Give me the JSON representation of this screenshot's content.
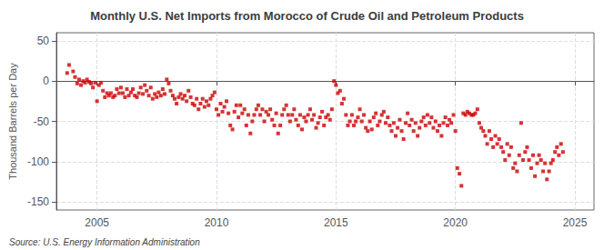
{
  "chart_data": {
    "type": "scatter",
    "title": "Monthly U.S. Net Imports from Morocco of Crude Oil and Petroleum Products",
    "ylabel": "Thousand Barrels per Day",
    "annotations": [
      "Source: U.S. Energy Information Administration"
    ],
    "color": "#cc0000",
    "marker": "square",
    "grid": true,
    "xlim": [
      2003.3,
      2025.8
    ],
    "ylim": [
      -160,
      60
    ],
    "xticks": [
      2005,
      2010,
      2015,
      2020,
      2025
    ],
    "yticks": [
      -150,
      -100,
      -50,
      0,
      50
    ],
    "x": [
      2003.75,
      2003.83,
      2004.0,
      2004.08,
      2004.17,
      2004.25,
      2004.33,
      2004.42,
      2004.5,
      2004.58,
      2004.67,
      2004.75,
      2004.83,
      2004.92,
      2005.0,
      2005.08,
      2005.17,
      2005.25,
      2005.33,
      2005.42,
      2005.5,
      2005.58,
      2005.67,
      2005.75,
      2005.83,
      2005.92,
      2006.0,
      2006.08,
      2006.17,
      2006.25,
      2006.33,
      2006.42,
      2006.5,
      2006.58,
      2006.67,
      2006.75,
      2006.83,
      2006.92,
      2007.0,
      2007.08,
      2007.17,
      2007.25,
      2007.33,
      2007.42,
      2007.5,
      2007.58,
      2007.67,
      2007.75,
      2007.83,
      2007.92,
      2008.0,
      2008.08,
      2008.17,
      2008.25,
      2008.33,
      2008.42,
      2008.5,
      2008.58,
      2008.67,
      2008.75,
      2008.83,
      2008.92,
      2009.0,
      2009.08,
      2009.17,
      2009.25,
      2009.33,
      2009.42,
      2009.5,
      2009.58,
      2009.67,
      2009.75,
      2009.83,
      2009.92,
      2010.0,
      2010.08,
      2010.17,
      2010.25,
      2010.33,
      2010.42,
      2010.5,
      2010.58,
      2010.67,
      2010.75,
      2010.83,
      2010.92,
      2011.0,
      2011.08,
      2011.17,
      2011.25,
      2011.33,
      2011.42,
      2011.5,
      2011.58,
      2011.67,
      2011.75,
      2011.83,
      2011.92,
      2012.0,
      2012.08,
      2012.17,
      2012.25,
      2012.33,
      2012.42,
      2012.5,
      2012.58,
      2012.67,
      2012.75,
      2012.83,
      2012.92,
      2013.0,
      2013.08,
      2013.17,
      2013.25,
      2013.33,
      2013.42,
      2013.5,
      2013.58,
      2013.67,
      2013.75,
      2013.83,
      2013.92,
      2014.0,
      2014.08,
      2014.17,
      2014.25,
      2014.33,
      2014.42,
      2014.5,
      2014.58,
      2014.67,
      2014.75,
      2014.83,
      2014.92,
      2015.0,
      2015.08,
      2015.17,
      2015.25,
      2015.33,
      2015.42,
      2015.5,
      2015.58,
      2015.67,
      2015.75,
      2015.83,
      2015.92,
      2016.0,
      2016.08,
      2016.17,
      2016.25,
      2016.33,
      2016.42,
      2016.5,
      2016.58,
      2016.67,
      2016.75,
      2016.83,
      2016.92,
      2017.0,
      2017.08,
      2017.17,
      2017.25,
      2017.33,
      2017.42,
      2017.5,
      2017.58,
      2017.67,
      2017.75,
      2017.83,
      2017.92,
      2018.0,
      2018.08,
      2018.17,
      2018.25,
      2018.33,
      2018.42,
      2018.5,
      2018.58,
      2018.67,
      2018.75,
      2018.83,
      2018.92,
      2019.0,
      2019.08,
      2019.17,
      2019.25,
      2019.33,
      2019.42,
      2019.5,
      2019.58,
      2019.67,
      2019.75,
      2019.83,
      2019.92,
      2020.0,
      2020.08,
      2020.17,
      2020.25,
      2020.33,
      2020.42,
      2020.5,
      2020.58,
      2020.67,
      2020.75,
      2020.83,
      2020.92,
      2021.0,
      2021.08,
      2021.17,
      2021.25,
      2021.33,
      2021.42,
      2021.5,
      2021.58,
      2021.67,
      2021.75,
      2021.83,
      2021.92,
      2022.0,
      2022.08,
      2022.17,
      2022.25,
      2022.33,
      2022.42,
      2022.5,
      2022.58,
      2022.67,
      2022.75,
      2022.83,
      2022.92,
      2023.0,
      2023.08,
      2023.17,
      2023.25,
      2023.33,
      2023.42,
      2023.5,
      2023.58,
      2023.67,
      2023.75,
      2023.83,
      2023.92,
      2024.0,
      2024.08,
      2024.17,
      2024.25,
      2024.33,
      2024.42,
      2024.5
    ],
    "values": [
      10,
      20,
      12,
      5,
      -3,
      2,
      -5,
      0,
      -2,
      2,
      -1,
      -3,
      -8,
      -2,
      -25,
      -5,
      -2,
      -12,
      -20,
      -15,
      -18,
      -15,
      -20,
      -18,
      -10,
      -15,
      -8,
      -15,
      -20,
      -10,
      -18,
      -14,
      -10,
      -18,
      -20,
      -15,
      -8,
      -16,
      -5,
      -12,
      -18,
      -8,
      -22,
      -16,
      -20,
      -14,
      -18,
      -10,
      -16,
      2,
      -3,
      -12,
      -18,
      -22,
      -28,
      -20,
      -16,
      -22,
      -18,
      -25,
      -12,
      -20,
      -28,
      -30,
      -22,
      -35,
      -28,
      -22,
      -32,
      -25,
      -30,
      -22,
      -18,
      -14,
      -35,
      -42,
      -28,
      -38,
      -32,
      -25,
      -40,
      -55,
      -60,
      -38,
      -30,
      -45,
      -30,
      -40,
      -35,
      -55,
      -42,
      -65,
      -50,
      -42,
      -35,
      -30,
      -42,
      -35,
      -50,
      -38,
      -42,
      -35,
      -48,
      -55,
      -40,
      -65,
      -55,
      -42,
      -35,
      -30,
      -42,
      -50,
      -42,
      -35,
      -48,
      -55,
      -42,
      -60,
      -45,
      -50,
      -42,
      -35,
      -48,
      -42,
      -58,
      -52,
      -45,
      -38,
      -55,
      -45,
      -42,
      -48,
      -35,
      0,
      -5,
      -15,
      -12,
      -28,
      -22,
      -42,
      -55,
      -50,
      -42,
      -55,
      -50,
      -45,
      -35,
      -50,
      -42,
      -58,
      -62,
      -50,
      -60,
      -45,
      -40,
      -55,
      -50,
      -42,
      -38,
      -52,
      -45,
      -55,
      -62,
      -52,
      -68,
      -58,
      -48,
      -62,
      -72,
      -52,
      -40,
      -55,
      -48,
      -62,
      -52,
      -68,
      -58,
      -50,
      -45,
      -55,
      -42,
      -52,
      -45,
      -58,
      -50,
      -62,
      -55,
      -68,
      -52,
      -45,
      -55,
      -48,
      -52,
      -42,
      -62,
      -108,
      -115,
      -130,
      -40,
      -42,
      -38,
      -40,
      -42,
      -42,
      -40,
      -35,
      -52,
      -58,
      -62,
      -68,
      -78,
      -62,
      -72,
      -82,
      -68,
      -78,
      -72,
      -82,
      -88,
      -98,
      -78,
      -92,
      -82,
      -108,
      -102,
      -112,
      -92,
      -52,
      -98,
      -88,
      -82,
      -98,
      -108,
      -92,
      -118,
      -102,
      -92,
      -98,
      -112,
      -102,
      -122,
      -112,
      -102,
      -98,
      -88,
      -82,
      -92,
      -78,
      -88
    ]
  }
}
